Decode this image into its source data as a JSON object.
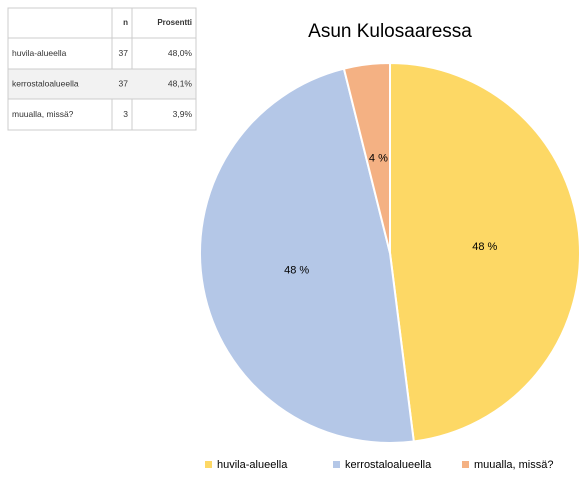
{
  "table": {
    "header": [
      "n",
      "Prosentti"
    ],
    "rows": [
      [
        "huvila-alueella",
        37,
        "48,0%"
      ],
      [
        "kerrostaloalueella",
        37,
        "48,1%"
      ],
      [
        "muualla, missä?",
        3,
        "3,9%"
      ]
    ]
  },
  "chart_data": {
    "type": "pie",
    "title": "Asun Kulosaaressa",
    "categories": [
      "huvila-alueella",
      "kerrostaloalueella",
      "muualla, missä?"
    ],
    "values": [
      48.0,
      48.1,
      3.9
    ],
    "value_labels": [
      "48 %",
      "48 %",
      "4 %"
    ],
    "colors": [
      "#fdd865",
      "#b4c7e7",
      "#f4b183"
    ],
    "legend": "bottom"
  }
}
